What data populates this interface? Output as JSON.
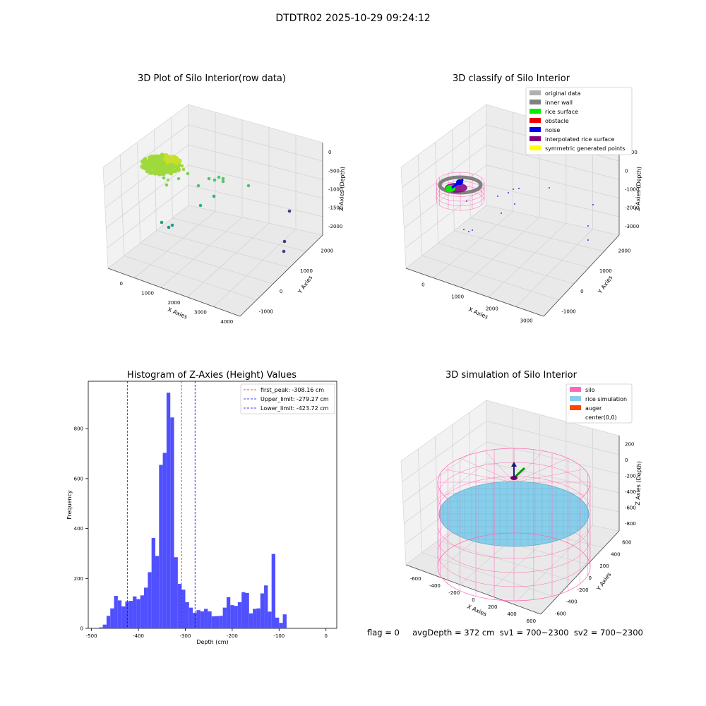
{
  "suptitle": "DTDTR02 2025-10-29 09:24:12",
  "status_line": "flag = 0     avgDepth = 372 cm  sv1 = 700~2300  sv2 = 700~2300",
  "chart_data": [
    {
      "type": "scatter",
      "projection": "3d",
      "title": "3D Plot of Silo Interior(row data)",
      "xlabel": "X Axies",
      "ylabel": "Y Axies",
      "zlabel": "Z Axies (Depth)",
      "x_ticks": [
        "0",
        "1000",
        "2000",
        "3000",
        "4000"
      ],
      "y_ticks": [
        "-1000",
        "0",
        "1000",
        "2000"
      ],
      "z_ticks": [
        "0",
        "-500",
        "-1000",
        "-1500",
        "-2000"
      ],
      "colormap": "viridis",
      "point_cluster_colors": [
        "#c6e02a",
        "#9fd93b",
        "#7ad151",
        "#52c569",
        "#2fb47c",
        "#1f9e89",
        "#21918c",
        "#3b528b",
        "#443983"
      ]
    },
    {
      "type": "scatter",
      "projection": "3d",
      "title": "3D classify of Silo Interior",
      "xlabel": "X Axies",
      "ylabel": "Y Axies",
      "zlabel": "Z Axies (Depth)",
      "x_ticks": [
        "0",
        "1000",
        "2000",
        "3000"
      ],
      "y_ticks": [
        "-1000",
        "0",
        "1000",
        "2000"
      ],
      "z_ticks": [
        "1000",
        "0",
        "-1000",
        "-2000",
        "-3000"
      ],
      "legend": [
        {
          "label": "original data",
          "color": "#b0b0b0"
        },
        {
          "label": "inner wall",
          "color": "#808080"
        },
        {
          "label": "rice surface",
          "color": "#00ee00"
        },
        {
          "label": "obstacle",
          "color": "#ee0000"
        },
        {
          "label": "noise",
          "color": "#0000ee"
        },
        {
          "label": "interpolated rice surface",
          "color": "#800080"
        },
        {
          "label": "symmetric generated points",
          "color": "#ffff00"
        }
      ],
      "legend_position": "top-right"
    },
    {
      "type": "bar",
      "title": "Histogram of Z-Axies (Height) Values",
      "xlabel": "Depth (cm)",
      "ylabel": "Frequency",
      "xlim": [
        -500,
        0
      ],
      "ylim": [
        0,
        990
      ],
      "bin_width": 8,
      "bin_start": -484,
      "x_ticks": [
        -500,
        -400,
        -300,
        -200,
        -100,
        0
      ],
      "y_ticks": [
        0,
        200,
        400,
        600,
        800
      ],
      "bar_color": "#5050ff",
      "values": [
        4,
        15,
        50,
        80,
        130,
        112,
        88,
        108,
        110,
        128,
        117,
        132,
        163,
        225,
        362,
        290,
        655,
        703,
        944,
        845,
        285,
        178,
        155,
        105,
        83,
        62,
        73,
        68,
        78,
        68,
        48,
        49,
        50,
        83,
        125,
        93,
        90,
        105,
        145,
        142,
        60,
        78,
        80,
        140,
        172,
        67,
        298,
        43,
        22,
        56
      ],
      "vlines": [
        {
          "label": "first_peak: -308.16 cm",
          "x": -308.16,
          "color": "#ff0000"
        },
        {
          "label": "Upper_limit: -279.27 cm",
          "x": -279.27,
          "color": "#0000ff"
        },
        {
          "label": "Lower_limit: -423.72 cm",
          "x": -423.72,
          "color": "#0000ff"
        }
      ],
      "legend_position": "top-right"
    },
    {
      "type": "surface",
      "projection": "3d",
      "title": "3D simulation of Silo Interior",
      "xlabel": "X Axies",
      "ylabel": "Y Axies",
      "zlabel": "Z Axies (Depth)",
      "x_ticks": [
        "-600",
        "-400",
        "-200",
        "0",
        "200",
        "400",
        "600"
      ],
      "y_ticks": [
        "-600",
        "-400",
        "-200",
        "0",
        "200",
        "400",
        "600"
      ],
      "z_ticks": [
        "200",
        "0",
        "-200",
        "-400",
        "-600",
        "-800"
      ],
      "legend": [
        {
          "label": "silo",
          "color": "#ff69b4"
        },
        {
          "label": "rice simulation",
          "color": "#87ceeb"
        },
        {
          "label": "auger",
          "color": "#ff4500"
        },
        {
          "label": "center(0,0)",
          "color": "#ffffff"
        }
      ],
      "legend_position": "top-right"
    }
  ]
}
